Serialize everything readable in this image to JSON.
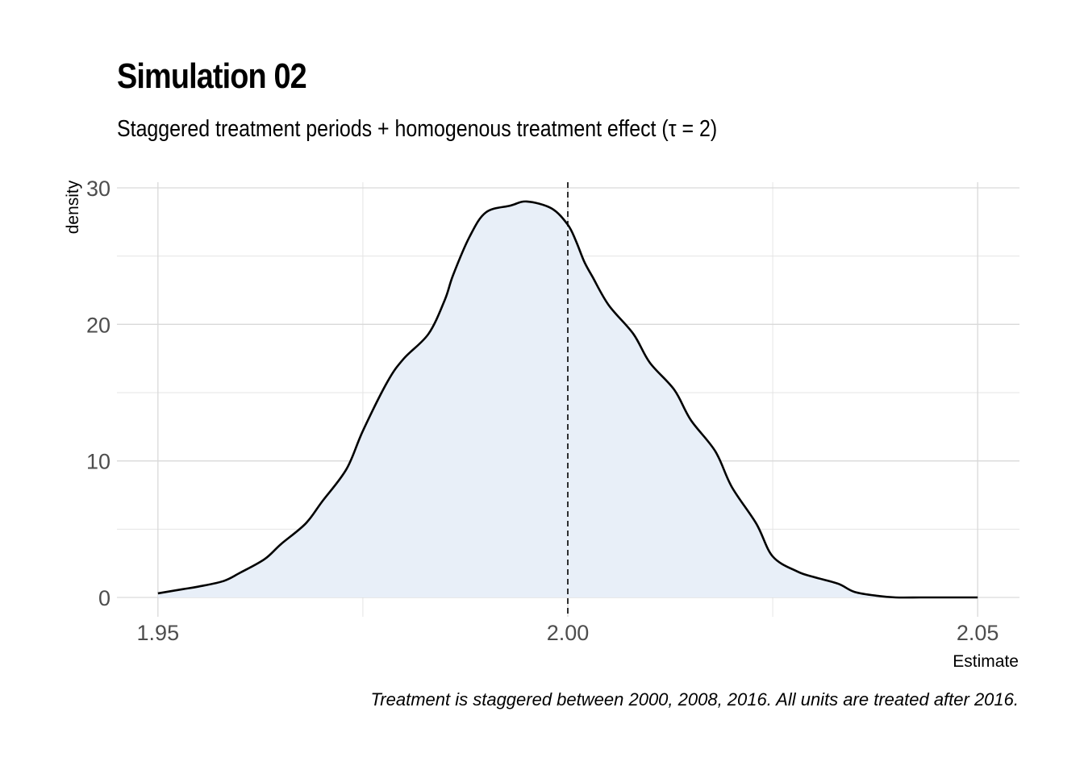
{
  "chart_data": {
    "type": "area",
    "title": "Simulation 02",
    "subtitle": "Staggered treatment periods + homogenous treatment effect (τ = 2)",
    "xlabel": "Estimate",
    "ylabel": "density",
    "caption": "Treatment is staggered between 2000, 2008, 2016. All units are treated after 2016.",
    "xlim": [
      1.945,
      2.0551
    ],
    "ylim": [
      0,
      30
    ],
    "x_ticks": [
      1.95,
      2.0,
      2.05
    ],
    "x_tick_labels": [
      "1.95",
      "2.00",
      "2.05"
    ],
    "y_ticks": [
      0,
      10,
      20,
      30
    ],
    "y_tick_labels": [
      "0",
      "10",
      "20",
      "30"
    ],
    "grid": true,
    "reference_line": {
      "x": 2.0,
      "style": "dashed"
    },
    "fill_color": "#e8eff8",
    "line_color": "#000000",
    "series": [
      {
        "x": [
          1.95,
          1.953,
          1.955,
          1.958,
          1.96,
          1.963,
          1.965,
          1.968,
          1.97,
          1.973,
          1.975,
          1.978,
          1.98,
          1.983,
          1.985,
          1.986,
          1.988,
          1.99,
          1.993,
          1.995,
          1.998,
          2.0,
          2.001,
          2.002,
          2.003,
          2.005,
          2.008,
          2.01,
          2.013,
          2.015,
          2.018,
          2.02,
          2.023,
          2.025,
          2.028,
          2.03,
          2.033,
          2.035,
          2.038,
          2.04,
          2.043,
          2.045,
          2.048,
          2.05
        ],
        "y": [
          0.3,
          0.6,
          0.8,
          1.2,
          1.8,
          2.8,
          3.9,
          5.4,
          7.0,
          9.4,
          12.2,
          15.8,
          17.5,
          19.3,
          21.8,
          23.6,
          26.4,
          28.2,
          28.7,
          29.0,
          28.5,
          27.3,
          26.1,
          24.6,
          23.5,
          21.4,
          19.3,
          17.2,
          15.2,
          13.0,
          10.7,
          8.1,
          5.4,
          3.0,
          1.9,
          1.5,
          1.0,
          0.4,
          0.1,
          0.0,
          0.0,
          0.0,
          0.0,
          0.0
        ]
      }
    ]
  }
}
